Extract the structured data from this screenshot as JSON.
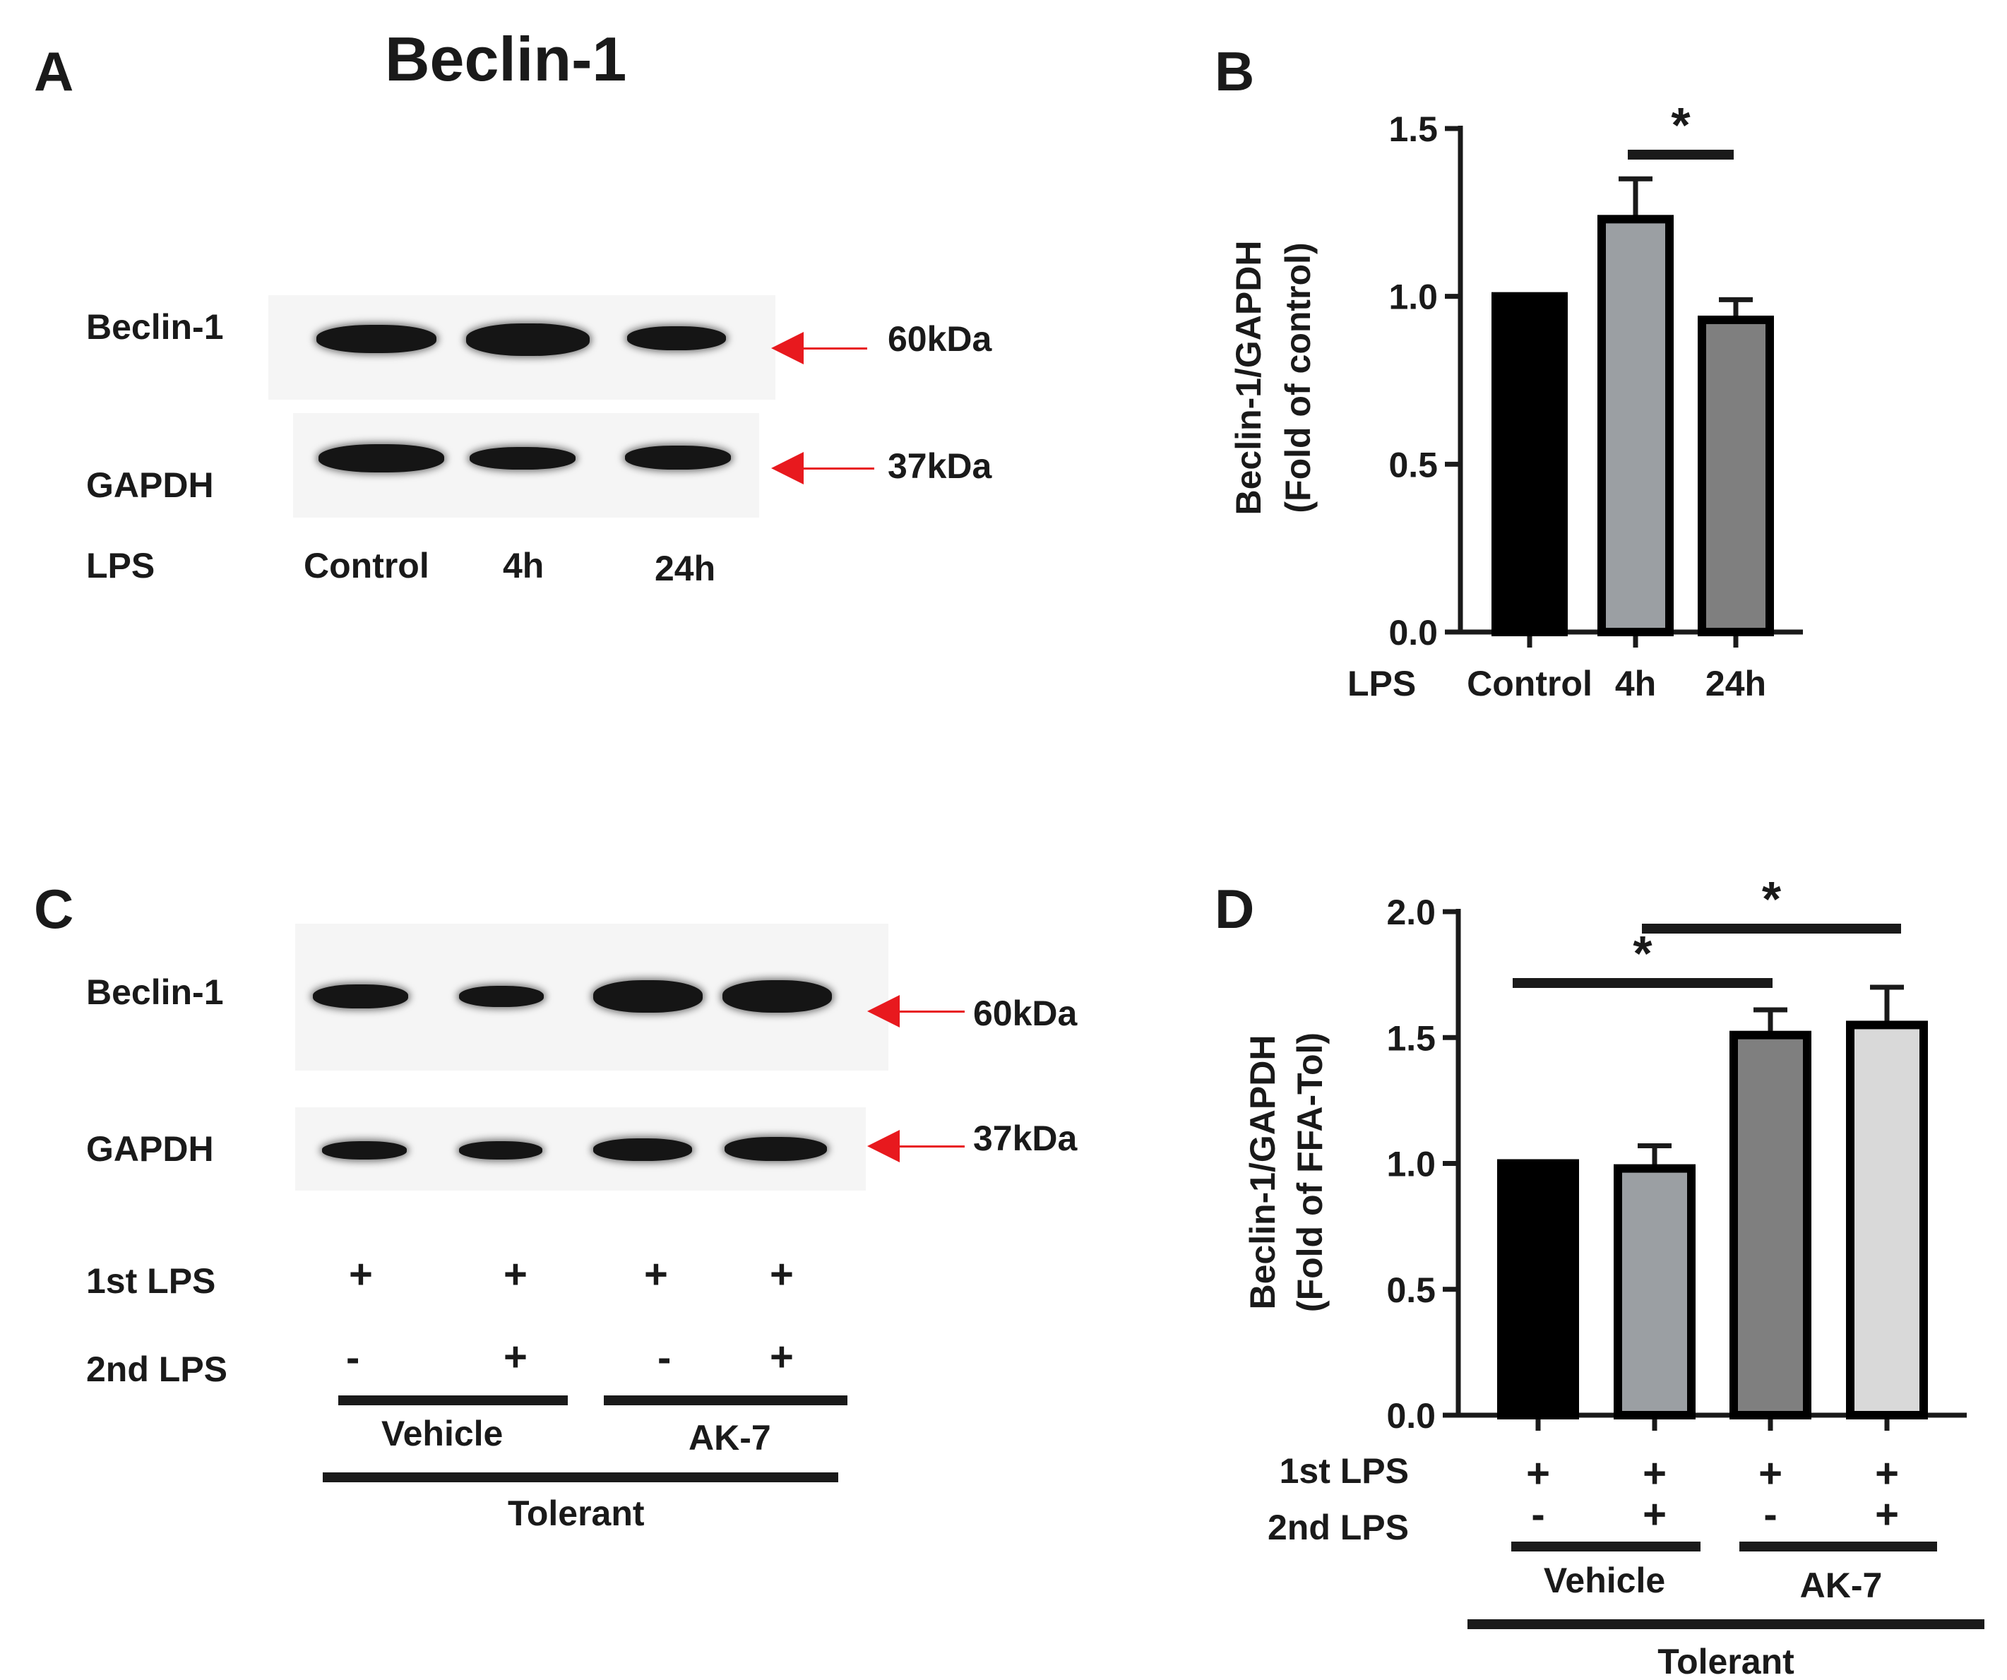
{
  "panel_a": {
    "letter": "A",
    "title": "Beclin-1",
    "row_beclin": "Beclin-1",
    "row_gapdh": "GAPDH",
    "row_lps": "LPS",
    "mw_beclin": "60kDa",
    "mw_gapdh": "37kDa",
    "lanes": [
      "Control",
      "4h",
      "24h"
    ]
  },
  "panel_c": {
    "letter": "C",
    "row_beclin": "Beclin-1",
    "row_gapdh": "GAPDH",
    "mw_beclin": "60kDa",
    "mw_gapdh": "37kDa",
    "row_1st": "1st LPS",
    "row_2nd": "2nd LPS",
    "first_lps": [
      "+",
      "+",
      "+",
      "+"
    ],
    "second_lps": [
      "-",
      "+",
      "-",
      "+"
    ],
    "group_vehicle": "Vehicle",
    "group_ak7": "AK-7",
    "group_tolerant": "Tolerant"
  },
  "chart_data": [
    {
      "panel": "B",
      "type": "bar",
      "ylabel_line1": "Beclin-1/GAPDH",
      "ylabel_line2": "(Fold of control)",
      "xlabel": "LPS",
      "categories": [
        "Control",
        "4h",
        "24h"
      ],
      "values": [
        1.0,
        1.23,
        0.93
      ],
      "errors": [
        0.0,
        0.12,
        0.06
      ],
      "colors": [
        "#000000",
        "#9b9fa3",
        "#7f7f7f"
      ],
      "ylim": [
        0,
        1.5
      ],
      "yticks": [
        "0.0",
        "0.5",
        "1.0",
        "1.5"
      ],
      "yticks_values": [
        0,
        0.5,
        1.0,
        1.5
      ],
      "significance": [
        {
          "from": 1,
          "to": 2,
          "label": "*"
        }
      ]
    },
    {
      "panel": "D",
      "type": "bar",
      "ylabel_line1": "Beclin-1/GAPDH",
      "ylabel_line2": "(Fold of FFA-Tol)",
      "categories": [
        "Vehicle 2nd LPS -",
        "Vehicle 2nd LPS +",
        "AK-7 2nd LPS -",
        "AK-7 2nd LPS +"
      ],
      "values": [
        1.0,
        0.98,
        1.51,
        1.55
      ],
      "errors": [
        0.0,
        0.09,
        0.1,
        0.15
      ],
      "colors": [
        "#000000",
        "#9b9fa3",
        "#7f7f7f",
        "#d9d9d9"
      ],
      "ylim": [
        0,
        2.0
      ],
      "yticks": [
        "0.0",
        "0.5",
        "1.0",
        "1.5",
        "2.0"
      ],
      "yticks_values": [
        0,
        0.5,
        1.0,
        1.5,
        2.0
      ],
      "row_1st": "1st LPS",
      "row_2nd": "2nd LPS",
      "first_lps": [
        "+",
        "+",
        "+",
        "+"
      ],
      "second_lps": [
        "-",
        "+",
        "-",
        "+"
      ],
      "group_vehicle": "Vehicle",
      "group_ak7": "AK-7",
      "group_tolerant": "Tolerant",
      "significance": [
        {
          "from": 0,
          "to": 2,
          "label": "*"
        },
        {
          "from": 1,
          "to": 3,
          "label": "*"
        }
      ]
    }
  ]
}
